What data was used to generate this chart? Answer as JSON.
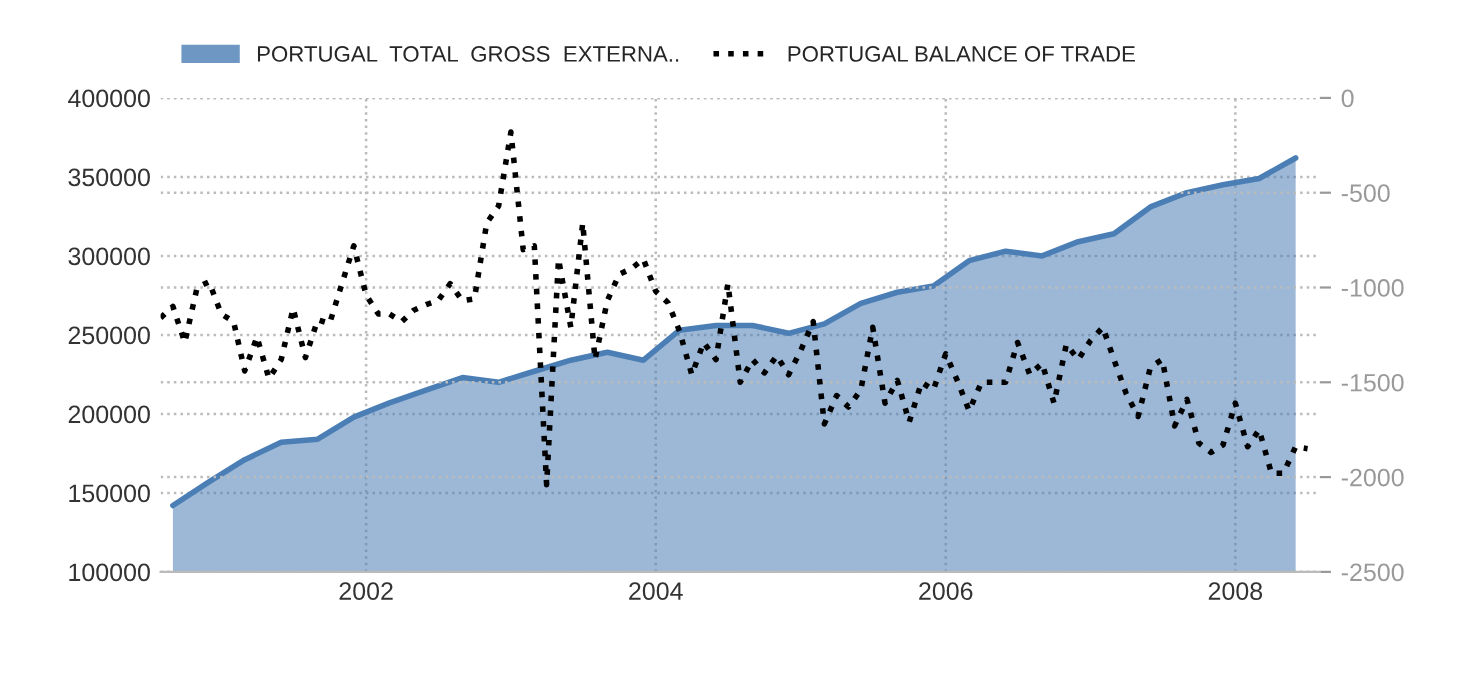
{
  "chart_data": {
    "type": "area",
    "legend": "top left",
    "grid": true,
    "xlim": [
      "2000-08",
      "2008-08"
    ],
    "xticks": [
      {
        "value": "2002-01",
        "label": "2002"
      },
      {
        "value": "2004-01",
        "label": "2004"
      },
      {
        "value": "2006-01",
        "label": "2006"
      },
      {
        "value": "2008-01",
        "label": "2008"
      }
    ],
    "ylim": [
      100000,
      400000
    ],
    "yticks": [
      100000,
      150000,
      200000,
      250000,
      300000,
      350000,
      400000
    ],
    "y2lim": [
      -2500,
      0
    ],
    "y2ticks": [
      -2500,
      -2000,
      -1500,
      -1000,
      -500,
      0
    ],
    "series": [
      {
        "name": "PORTUGAL  TOTAL  GROSS  EXTERNA..",
        "color": "#4a7eb5",
        "x": [
          "2000-09",
          "2000-12",
          "2001-03",
          "2001-06",
          "2001-09",
          "2001-12",
          "2002-03",
          "2002-06",
          "2002-09",
          "2002-12",
          "2003-03",
          "2003-06",
          "2003-09",
          "2003-12",
          "2004-03",
          "2004-06",
          "2004-09",
          "2004-12",
          "2005-03",
          "2005-06",
          "2005-09",
          "2005-12",
          "2006-03",
          "2006-06",
          "2006-09",
          "2006-12",
          "2007-03",
          "2007-06",
          "2007-09",
          "2007-12",
          "2008-03",
          "2008-06"
        ],
        "values": [
          142000,
          157000,
          171000,
          182000,
          184000,
          198000,
          207000,
          215000,
          223000,
          220000,
          227000,
          234000,
          239000,
          234000,
          253000,
          256000,
          256000,
          251000,
          257000,
          270000,
          277000,
          281000,
          297000,
          303000,
          300000,
          309000,
          314000,
          331000,
          340000,
          345000,
          349000,
          362000
        ]
      },
      {
        "name": "PORTUGAL BALANCE OF TRADE",
        "type": "line",
        "axis": "y2",
        "color": "#000000",
        "line_style": "dotted",
        "x": [
          "2000-08",
          "2000-09",
          "2000-10",
          "2000-11",
          "2000-12",
          "2001-01",
          "2001-02",
          "2001-03",
          "2001-04",
          "2001-05",
          "2001-06",
          "2001-07",
          "2001-08",
          "2001-09",
          "2001-10",
          "2001-11",
          "2001-12",
          "2002-01",
          "2002-02",
          "2002-03",
          "2002-04",
          "2002-05",
          "2002-06",
          "2002-07",
          "2002-08",
          "2002-09",
          "2002-10",
          "2002-11",
          "2002-12",
          "2003-01",
          "2003-02",
          "2003-03",
          "2003-04",
          "2003-05",
          "2003-06",
          "2003-07",
          "2003-08",
          "2003-09",
          "2003-10",
          "2003-11",
          "2003-12",
          "2004-01",
          "2004-02",
          "2004-03",
          "2004-04",
          "2004-05",
          "2004-06",
          "2004-07",
          "2004-08",
          "2004-09",
          "2004-10",
          "2004-11",
          "2004-12",
          "2005-01",
          "2005-02",
          "2005-03",
          "2005-04",
          "2005-05",
          "2005-06",
          "2005-07",
          "2005-08",
          "2005-09",
          "2005-10",
          "2005-11",
          "2005-12",
          "2006-01",
          "2006-02",
          "2006-03",
          "2006-04",
          "2006-05",
          "2006-06",
          "2006-07",
          "2006-08",
          "2006-09",
          "2006-10",
          "2006-11",
          "2006-12",
          "2007-01",
          "2007-02",
          "2007-03",
          "2007-04",
          "2007-05",
          "2007-06",
          "2007-07",
          "2007-08",
          "2007-09",
          "2007-10",
          "2007-11",
          "2007-12",
          "2008-01",
          "2008-02",
          "2008-03",
          "2008-04",
          "2008-05",
          "2008-06",
          "2008-07"
        ],
        "values": [
          -1160,
          -1100,
          -1290,
          -1000,
          -970,
          -1140,
          -1180,
          -1440,
          -1260,
          -1480,
          -1380,
          -1110,
          -1370,
          -1170,
          -1190,
          -980,
          -780,
          -1040,
          -1140,
          -1140,
          -1180,
          -1120,
          -1090,
          -1070,
          -980,
          -1070,
          -1060,
          -660,
          -570,
          -180,
          -800,
          -780,
          -2040,
          -850,
          -1210,
          -660,
          -1380,
          -1070,
          -930,
          -900,
          -850,
          -1020,
          -1080,
          -1230,
          -1460,
          -1290,
          -1380,
          -980,
          -1500,
          -1380,
          -1450,
          -1360,
          -1460,
          -1330,
          -1180,
          -1720,
          -1570,
          -1630,
          -1540,
          -1210,
          -1610,
          -1490,
          -1710,
          -1500,
          -1540,
          -1350,
          -1500,
          -1650,
          -1500,
          -1500,
          -1500,
          -1290,
          -1460,
          -1400,
          -1610,
          -1300,
          -1380,
          -1280,
          -1210,
          -1380,
          -1560,
          -1680,
          -1420,
          -1380,
          -1730,
          -1590,
          -1820,
          -1870,
          -1830,
          -1610,
          -1840,
          -1750,
          -1980,
          -1980,
          -1840,
          -1850
        ]
      }
    ]
  }
}
